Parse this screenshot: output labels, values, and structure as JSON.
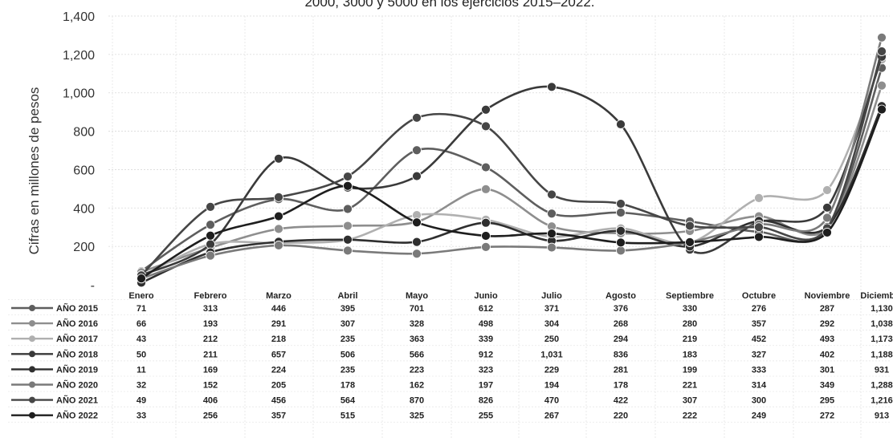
{
  "chart_data": {
    "type": "line",
    "title": "2000, 3000 y 5000 en los ejercicios 2015–2022.",
    "ylabel": "Cifras en millones de pesos",
    "ylim": [
      0,
      1400
    ],
    "y_ticks": [
      "-",
      "200",
      "400",
      "600",
      "800",
      "1,000",
      "1,200",
      "1,400"
    ],
    "y_tick_values": [
      0,
      200,
      400,
      600,
      800,
      1000,
      1200,
      1400
    ],
    "categories": [
      "Enero",
      "Febrero",
      "Marzo",
      "Abril",
      "Mayo",
      "Junio",
      "Julio",
      "Agosto",
      "Septiembre",
      "Octubre",
      "Noviembre",
      "Diciembre"
    ],
    "grid": true,
    "legend": "data table below plot",
    "series": [
      {
        "name": "AÑO 2015",
        "color": "#5e5e5e",
        "values": [
          71,
          313,
          446,
          395,
          701,
          612,
          371,
          376,
          330,
          276,
          287,
          1130
        ],
        "labels": [
          "71",
          "313",
          "446",
          "395",
          "701",
          "612",
          "371",
          "376",
          "330",
          "276",
          "287",
          "1,130"
        ]
      },
      {
        "name": "AÑO 2016",
        "color": "#8e8e8e",
        "values": [
          66,
          193,
          291,
          307,
          328,
          498,
          304,
          268,
          280,
          357,
          292,
          1038
        ],
        "labels": [
          "66",
          "193",
          "291",
          "307",
          "328",
          "498",
          "304",
          "268",
          "280",
          "357",
          "292",
          "1,038"
        ]
      },
      {
        "name": "AÑO 2017",
        "color": "#b0b0b0",
        "values": [
          43,
          212,
          218,
          235,
          363,
          339,
          250,
          294,
          219,
          452,
          493,
          1173
        ],
        "labels": [
          "43",
          "212",
          "218",
          "235",
          "363",
          "339",
          "250",
          "294",
          "219",
          "452",
          "493",
          "1,173"
        ]
      },
      {
        "name": "AÑO 2018",
        "color": "#3a3a3a",
        "values": [
          50,
          211,
          657,
          506,
          566,
          912,
          1031,
          836,
          183,
          327,
          402,
          1188
        ],
        "labels": [
          "50",
          "211",
          "657",
          "506",
          "566",
          "912",
          "1,031",
          "836",
          "183",
          "327",
          "402",
          "1,188"
        ]
      },
      {
        "name": "AÑO 2019",
        "color": "#2f2f2f",
        "values": [
          11,
          169,
          224,
          235,
          223,
          323,
          229,
          281,
          199,
          333,
          301,
          931
        ],
        "labels": [
          "11",
          "169",
          "224",
          "235",
          "223",
          "323",
          "229",
          "281",
          "199",
          "333",
          "301",
          "931"
        ]
      },
      {
        "name": "AÑO 2020",
        "color": "#7a7a7a",
        "values": [
          32,
          152,
          205,
          178,
          162,
          197,
          194,
          178,
          221,
          314,
          349,
          1288
        ],
        "labels": [
          "32",
          "152",
          "205",
          "178",
          "162",
          "197",
          "194",
          "178",
          "221",
          "314",
          "349",
          "1,288"
        ]
      },
      {
        "name": "AÑO 2021",
        "color": "#464646",
        "values": [
          49,
          406,
          456,
          564,
          870,
          826,
          470,
          422,
          307,
          300,
          295,
          1216
        ],
        "labels": [
          "49",
          "406",
          "456",
          "564",
          "870",
          "826",
          "470",
          "422",
          "307",
          "300",
          "295",
          "1,216"
        ]
      },
      {
        "name": "AÑO 2022",
        "color": "#1e1e1e",
        "values": [
          33,
          256,
          357,
          515,
          325,
          255,
          267,
          220,
          222,
          249,
          272,
          913
        ],
        "labels": [
          "33",
          "256",
          "357",
          "515",
          "325",
          "255",
          "267",
          "220",
          "222",
          "249",
          "272",
          "913"
        ]
      }
    ]
  }
}
